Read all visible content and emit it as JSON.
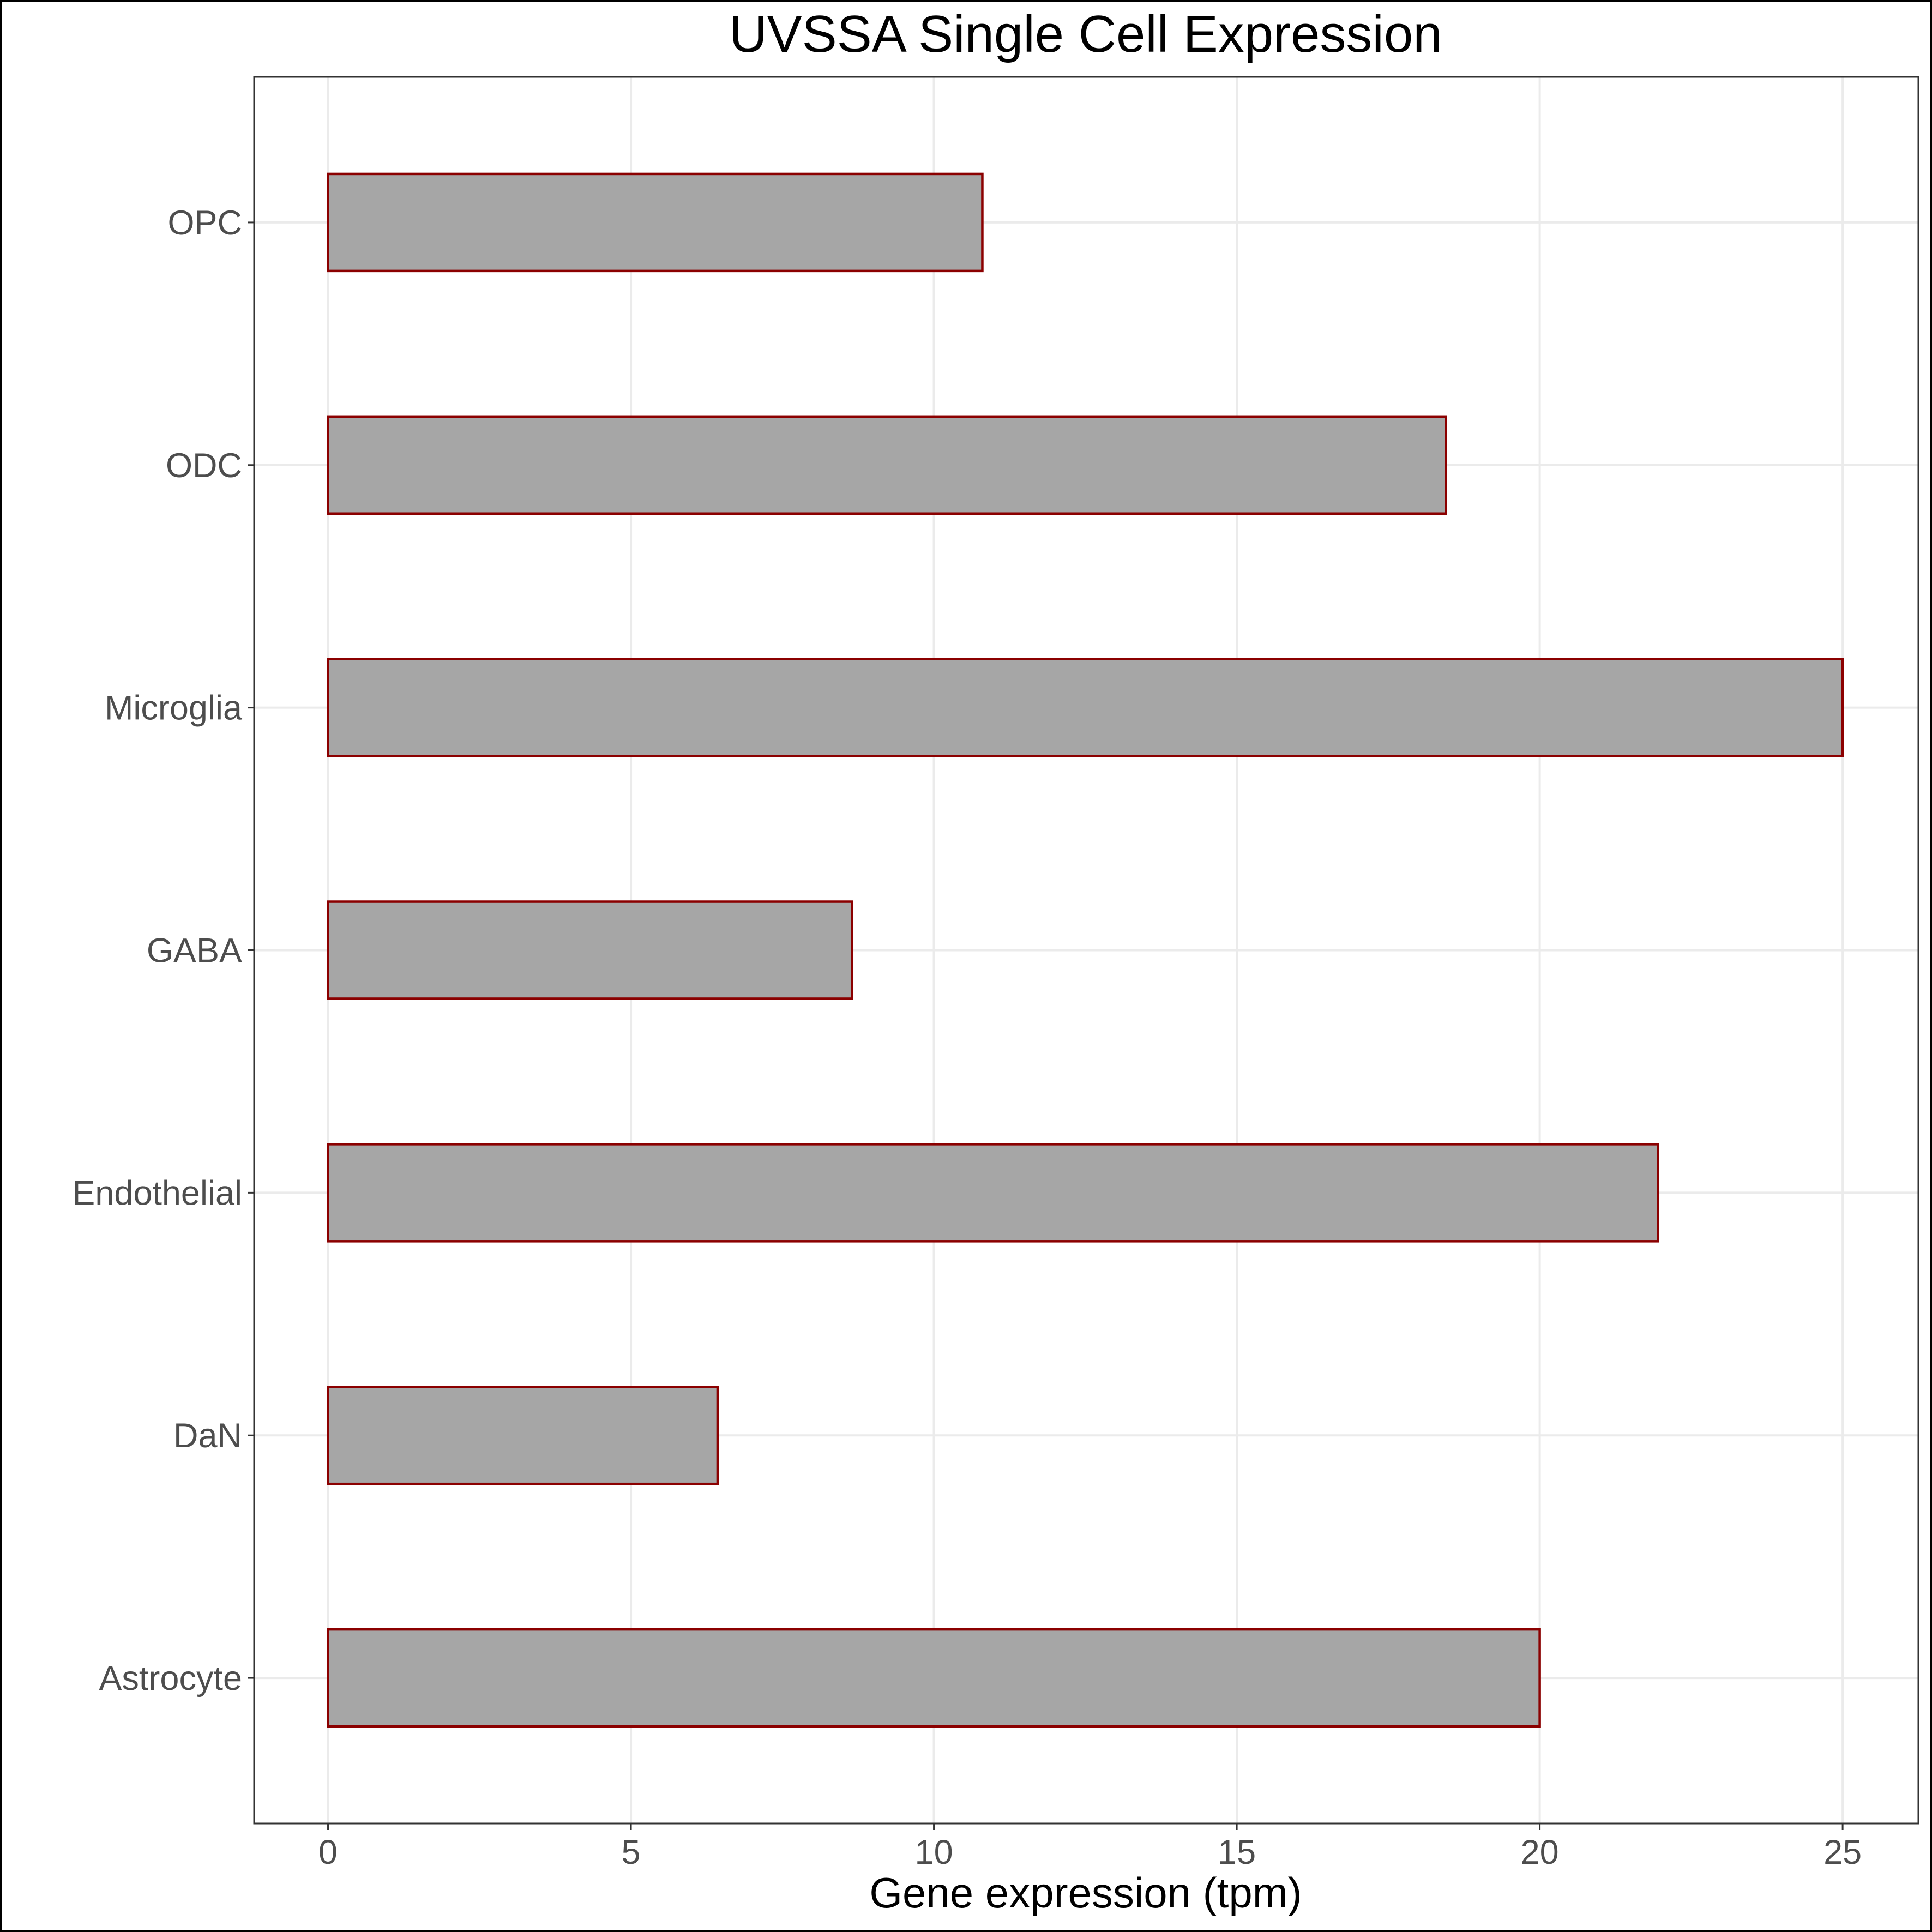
{
  "chart_data": {
    "type": "bar",
    "orientation": "horizontal",
    "title": "UVSSA Single Cell Expression",
    "xlabel": "Gene expression (tpm)",
    "ylabel": "",
    "categories": [
      "OPC",
      "ODC",
      "Microglia",
      "GABA",
      "Endothelial",
      "DaN",
      "Astrocyte"
    ],
    "values": [
      10.8,
      18.45,
      25.0,
      8.65,
      21.95,
      6.43,
      20.0
    ],
    "xlim": [
      -1.22,
      26.25
    ],
    "xticks": [
      0,
      5,
      10,
      15,
      20,
      25
    ],
    "xtick_labels": [
      "0",
      "5",
      "10",
      "15",
      "20",
      "25"
    ],
    "grid": true,
    "legend": "none",
    "colors": {
      "bar_fill": "#a6a6a6",
      "bar_outline": "#8b0000",
      "grid": "#ebebeb",
      "tick_text": "#4d4d4d"
    }
  }
}
